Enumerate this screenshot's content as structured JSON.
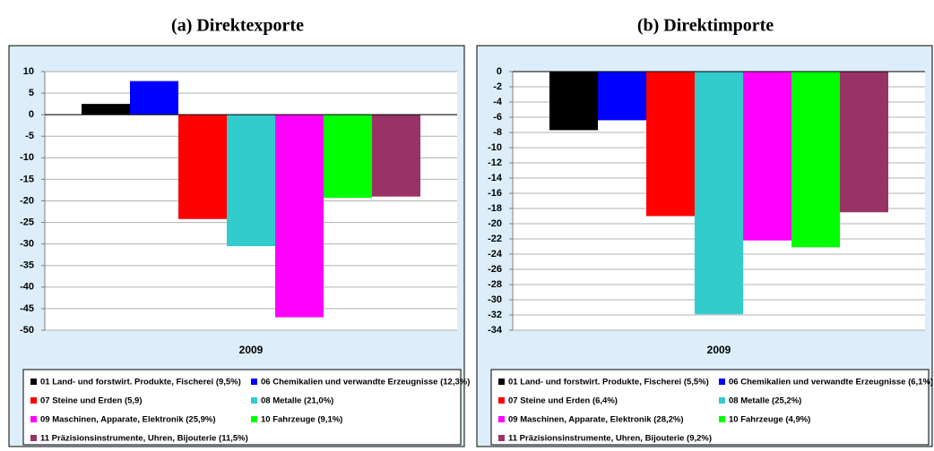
{
  "chart_data": [
    {
      "type": "bar",
      "title": "(a) Direktexporte",
      "categories": [
        "2009"
      ],
      "ylim": [
        -50,
        10
      ],
      "yticks": [
        10,
        5,
        0,
        -5,
        -10,
        -15,
        -20,
        -25,
        -30,
        -35,
        -40,
        -45,
        -50
      ],
      "grid": true,
      "series": [
        {
          "name": "01 Land- und forstwirt. Produkte, Fischerei (9,5%)",
          "color": "#000000",
          "values": [
            2.5
          ]
        },
        {
          "name": "06 Chemikalien und verwandte Erzeugnisse (12,3%)",
          "color": "#0000ff",
          "values": [
            7.8
          ]
        },
        {
          "name": "07 Steine und Erden (5,9)",
          "color": "#ff0000",
          "values": [
            -24.2
          ]
        },
        {
          "name": "08 Metalle (21,0%)",
          "color": "#33cccc",
          "values": [
            -30.5
          ]
        },
        {
          "name": "09 Maschinen, Apparate, Elektronik (25,9%)",
          "color": "#ff00ff",
          "values": [
            -47
          ]
        },
        {
          "name": "10 Fahrzeuge (9,1%)",
          "color": "#00ff00",
          "values": [
            -19.3
          ]
        },
        {
          "name": "11 Präzisionsinstrumente, Uhren, Bijouterie (11,5%)",
          "color": "#993366",
          "values": [
            -19
          ]
        }
      ]
    },
    {
      "type": "bar",
      "title": "(b) Direktimporte",
      "categories": [
        "2009"
      ],
      "ylim": [
        -34,
        0
      ],
      "yticks": [
        0,
        -2,
        -4,
        -6,
        -8,
        -10,
        -12,
        -14,
        -16,
        -18,
        -20,
        -22,
        -24,
        -26,
        -28,
        -30,
        -32,
        -34
      ],
      "grid": true,
      "series": [
        {
          "name": "01 Land- und forstwirt. Produkte, Fischerei (5,5%)",
          "color": "#000000",
          "values": [
            -7.7
          ]
        },
        {
          "name": "06 Chemikalien und verwandte Erzeugnisse (6,1%)",
          "color": "#0000ff",
          "values": [
            -6.4
          ]
        },
        {
          "name": "07 Steine und Erden (6,4%)",
          "color": "#ff0000",
          "values": [
            -19
          ]
        },
        {
          "name": "08 Metalle (25,2%)",
          "color": "#33cccc",
          "values": [
            -31.9
          ]
        },
        {
          "name": "09 Maschinen, Apparate, Elektronik (28,2%)",
          "color": "#ff00ff",
          "values": [
            -22.2
          ]
        },
        {
          "name": "10 Fahrzeuge (4,9%)",
          "color": "#00ff00",
          "values": [
            -23.1
          ]
        },
        {
          "name": "11 Präzisionsinstrumente, Uhren, Bijouterie (9,2%)",
          "color": "#993366",
          "values": [
            -18.5
          ]
        }
      ]
    }
  ]
}
